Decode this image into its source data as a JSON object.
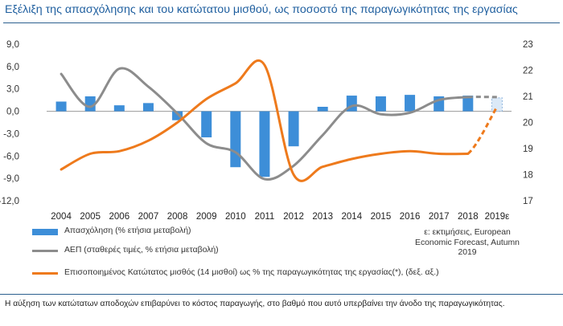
{
  "chart_data": {
    "type": "bar+line",
    "title": "Εξέλιξη της απασχόλησης και του κατώτατου μισθού, ως ποσοστό της παραγωγικότητας της εργασίας",
    "categories": [
      "2004",
      "2005",
      "2006",
      "2007",
      "2008",
      "2009",
      "2010",
      "2011",
      "2012",
      "2013",
      "2014",
      "2015",
      "2016",
      "2017",
      "2018",
      "2019ε"
    ],
    "left_axis": {
      "ylim": [
        -12,
        9
      ],
      "ticks": [
        "9,0",
        "6,0",
        "3,0",
        "0,0",
        "-3,0",
        "-6,0",
        "-9,0",
        "-12,0"
      ],
      "tick_values": [
        9,
        6,
        3,
        0,
        -3,
        -6,
        -9,
        -12
      ]
    },
    "right_axis": {
      "ylim": [
        17,
        23
      ],
      "ticks": [
        "23",
        "22",
        "21",
        "20",
        "19",
        "18",
        "17"
      ],
      "tick_values": [
        23,
        22,
        21,
        20,
        19,
        18,
        17
      ]
    },
    "series": [
      {
        "name": "Απασχόληση (% ετήσια μεταβολή)",
        "axis": "left",
        "kind": "bar",
        "color": "#3d8ed8",
        "values": [
          1.3,
          2.0,
          0.8,
          1.1,
          -1.2,
          -3.5,
          -7.5,
          -8.8,
          -4.7,
          0.6,
          2.1,
          2.0,
          2.2,
          2.0,
          2.1,
          1.8
        ]
      },
      {
        "name": "ΑΕΠ (σταθερές τιμές, % ετήσια μεταβολή)",
        "axis": "left",
        "kind": "line",
        "color": "#8c8c8c",
        "values": [
          5.0,
          0.6,
          5.7,
          3.3,
          -0.3,
          -4.3,
          -5.5,
          -9.1,
          -7.3,
          -3.2,
          0.7,
          -0.4,
          -0.2,
          1.5,
          1.9,
          1.9
        ]
      },
      {
        "name": "Επισοποιημένος Κατώτατος μισθός (14 μισθοί) ως % της παραγωγικότητας της εργασίας(*), (δεξ. αξ.)",
        "axis": "right",
        "kind": "line",
        "color": "#ee7a1c",
        "values": [
          18.2,
          18.8,
          18.9,
          19.3,
          20.0,
          20.9,
          21.5,
          22.2,
          18.0,
          18.3,
          18.6,
          18.8,
          18.9,
          18.8,
          18.8,
          20.6
        ]
      }
    ],
    "estimate_note": "ε: εκτιμήσεις, European Economic Forecast, Autumn 2019",
    "grid": false
  },
  "footer_text": "Η αύξηση των κατώτατων αποδοχών επιβαρύνει το κόστος παραγωγής, στο βαθμό που αυτό υπερβαίνει την άνοδο της παραγωγικότητας."
}
